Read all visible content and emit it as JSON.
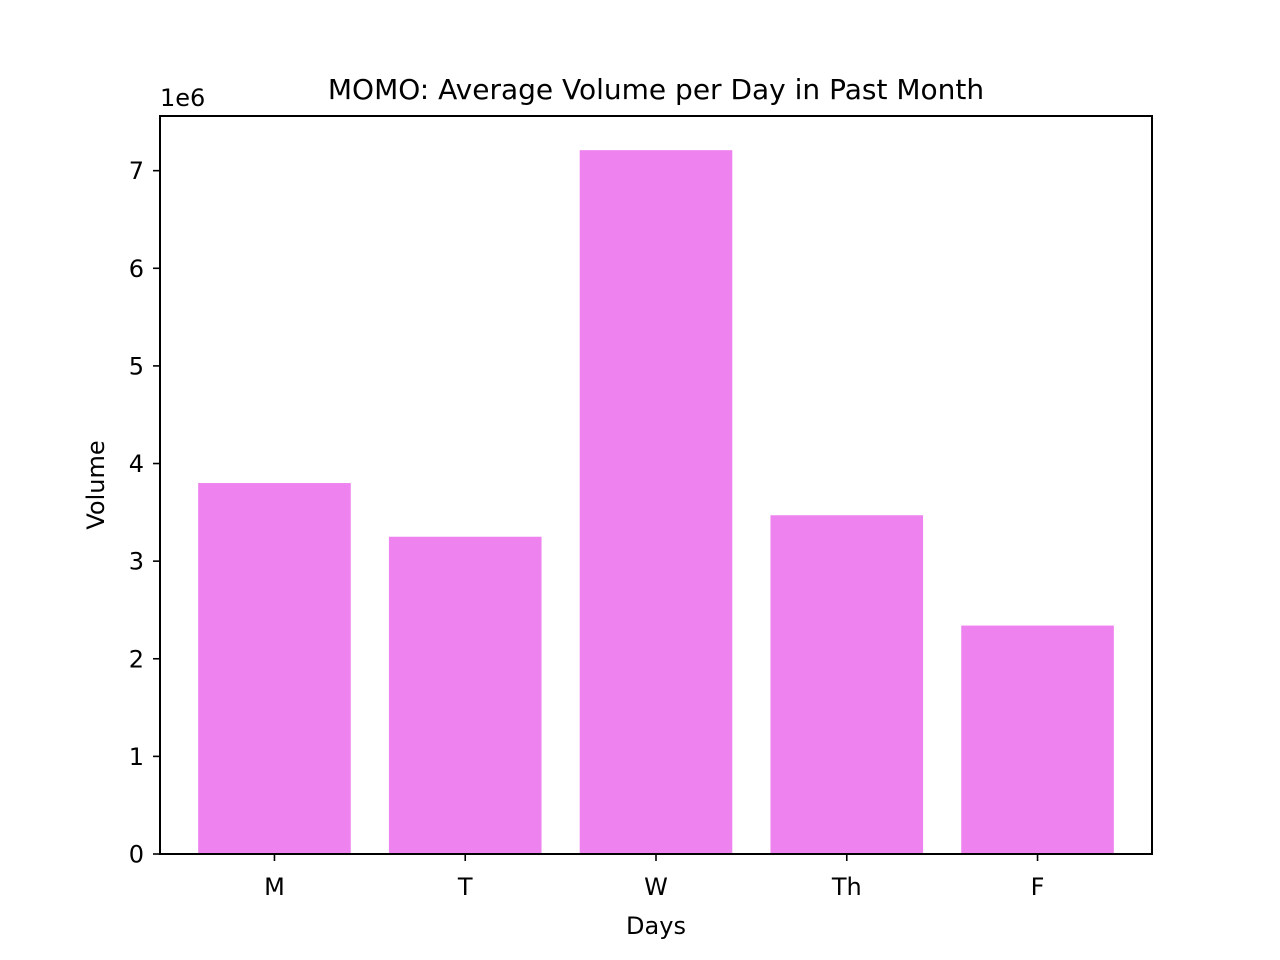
{
  "chart_data": {
    "type": "bar",
    "title": "MOMO: Average Volume per Day in Past Month",
    "xlabel": "Days",
    "ylabel": "Volume",
    "y_offset_label": "1e6",
    "y_scale_factor": 1000000,
    "categories": [
      "M",
      "T",
      "W",
      "Th",
      "F"
    ],
    "values": [
      3800000,
      3250000,
      7210000,
      3470000,
      2340000
    ],
    "ylim": [
      0,
      7560000
    ],
    "yticks": [
      0,
      1,
      2,
      3,
      4,
      5,
      6,
      7
    ],
    "bar_color": "#ee82ee",
    "grid": false,
    "legend": "none"
  }
}
